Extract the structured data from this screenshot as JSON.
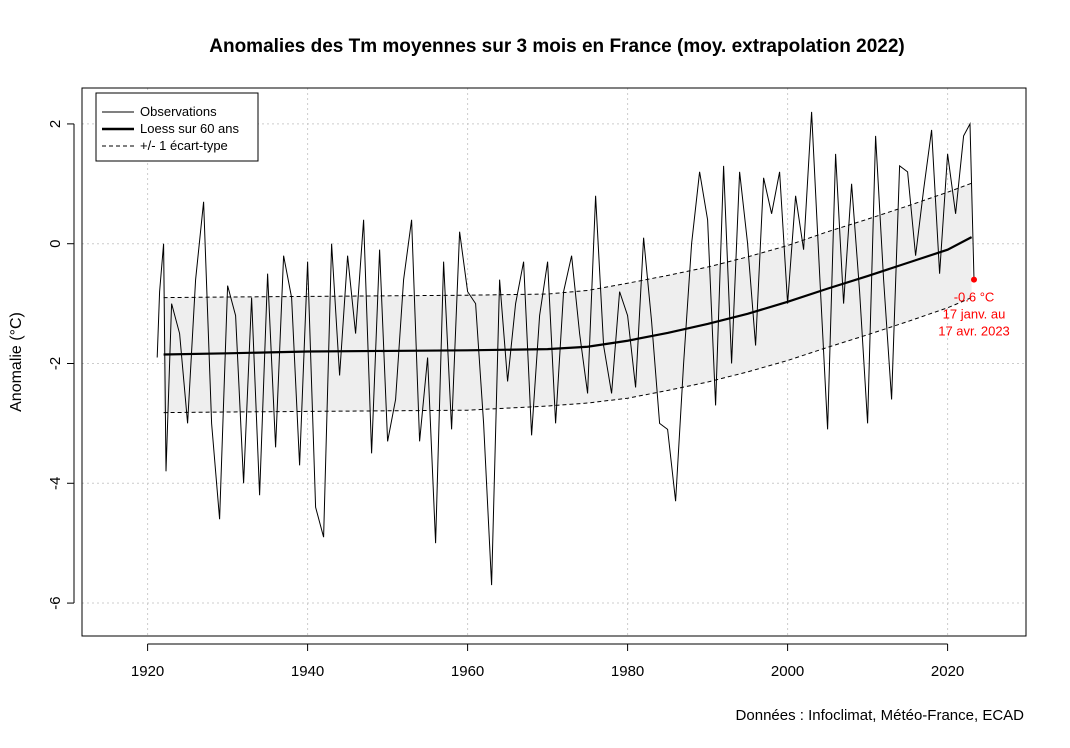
{
  "chart_data": {
    "type": "line",
    "title": "Anomalies des Tm moyennes sur 3 mois en France (moy. extrapolation 2022)",
    "ylabel": "Anomalie (°C)",
    "xlabel": "",
    "xlim": [
      1920,
      2030
    ],
    "ylim": [
      -6,
      2.6
    ],
    "x_ticks": [
      1920,
      1940,
      1960,
      1980,
      2000,
      2020
    ],
    "y_ticks": [
      -6,
      -4,
      -2,
      0,
      2
    ],
    "grid": true,
    "legend_position": "top-left",
    "legend": [
      "Observations",
      "Loess sur 60 ans",
      "+/- 1 écart-type"
    ],
    "series": [
      {
        "name": "Observations",
        "color": "#000000",
        "style": "thin-solid",
        "x": [
          1921.2,
          1921.5,
          1922.0,
          1922.3,
          1923.0,
          1924.0,
          1925.0,
          1926.0,
          1927.0,
          1928.0,
          1929.0,
          1930.0,
          1931.0,
          1932.0,
          1933.0,
          1934.0,
          1935.0,
          1936.0,
          1937.0,
          1938.0,
          1939.0,
          1940.0,
          1941.0,
          1942.0,
          1943.0,
          1944.0,
          1945.0,
          1946.0,
          1947.0,
          1948.0,
          1949.0,
          1950.0,
          1951.0,
          1952.0,
          1953.0,
          1954.0,
          1955.0,
          1956.0,
          1957.0,
          1958.0,
          1959.0,
          1960.0,
          1961.0,
          1962.0,
          1963.0,
          1964.0,
          1965.0,
          1966.0,
          1967.0,
          1968.0,
          1969.0,
          1970.0,
          1971.0,
          1972.0,
          1973.0,
          1974.0,
          1975.0,
          1976.0,
          1977.0,
          1978.0,
          1979.0,
          1980.0,
          1981.0,
          1982.0,
          1983.0,
          1984.0,
          1985.0,
          1986.0,
          1987.0,
          1988.0,
          1989.0,
          1990.0,
          1991.0,
          1992.0,
          1993.0,
          1994.0,
          1995.0,
          1996.0,
          1997.0,
          1998.0,
          1999.0,
          2000.0,
          2001.0,
          2002.0,
          2003.0,
          2004.0,
          2005.0,
          2006.0,
          2007.0,
          2008.0,
          2009.0,
          2010.0,
          2011.0,
          2012.0,
          2013.0,
          2014.0,
          2015.0,
          2016.0,
          2017.0,
          2018.0,
          2019.0,
          2020.0,
          2021.0,
          2022.0,
          2022.8,
          2023.3
        ],
        "y": [
          -1.9,
          -0.8,
          0.0,
          -3.8,
          -1.0,
          -1.5,
          -3.0,
          -0.6,
          0.7,
          -3.0,
          -4.6,
          -0.7,
          -1.2,
          -4.0,
          -0.9,
          -4.2,
          -0.5,
          -3.4,
          -0.2,
          -0.9,
          -3.7,
          -0.3,
          -4.4,
          -4.9,
          0.0,
          -2.2,
          -0.2,
          -1.5,
          0.4,
          -3.5,
          -0.1,
          -3.3,
          -2.6,
          -0.6,
          0.4,
          -3.3,
          -1.9,
          -5.0,
          -0.3,
          -3.1,
          0.2,
          -0.8,
          -1.0,
          -3.0,
          -5.7,
          -0.6,
          -2.3,
          -1.0,
          -0.3,
          -3.2,
          -1.2,
          -0.3,
          -3.0,
          -0.8,
          -0.2,
          -1.5,
          -2.5,
          0.8,
          -1.7,
          -2.5,
          -0.8,
          -1.2,
          -2.4,
          0.1,
          -1.3,
          -3.0,
          -3.1,
          -4.3,
          -2.0,
          0.0,
          1.2,
          0.4,
          -2.7,
          1.3,
          -2.0,
          1.2,
          0.0,
          -1.7,
          1.1,
          0.5,
          1.2,
          -1.0,
          0.8,
          -0.1,
          2.2,
          -0.5,
          -3.1,
          1.5,
          -1.0,
          1.0,
          -0.8,
          -3.0,
          1.8,
          -0.6,
          -2.6,
          1.3,
          1.2,
          -0.2,
          0.9,
          1.9,
          -0.5,
          1.5,
          0.5,
          1.8,
          2.0,
          -0.6
        ]
      },
      {
        "name": "Loess sur 60 ans",
        "color": "#000000",
        "style": "thick-solid",
        "x": [
          1922,
          1930,
          1940,
          1950,
          1960,
          1970,
          1975,
          1980,
          1985,
          1990,
          1995,
          2000,
          2005,
          2010,
          2015,
          2020,
          2023
        ],
        "y": [
          -1.85,
          -1.83,
          -1.8,
          -1.79,
          -1.78,
          -1.76,
          -1.72,
          -1.62,
          -1.49,
          -1.34,
          -1.17,
          -0.97,
          -0.75,
          -0.54,
          -0.32,
          -0.1,
          0.11
        ]
      },
      {
        "name": "+/- 1 écart-type",
        "color": "#000000",
        "style": "dashed",
        "x": [
          1922,
          1930,
          1940,
          1950,
          1960,
          1970,
          1975,
          1980,
          1985,
          1990,
          1995,
          2000,
          2005,
          2010,
          2015,
          2020,
          2023
        ],
        "upper": [
          -0.9,
          -0.89,
          -0.88,
          -0.87,
          -0.86,
          -0.84,
          -0.78,
          -0.66,
          -0.53,
          -0.39,
          -0.22,
          -0.03,
          0.2,
          0.41,
          0.63,
          0.86,
          1.01
        ],
        "lower": [
          -2.82,
          -2.81,
          -2.8,
          -2.79,
          -2.78,
          -2.71,
          -2.66,
          -2.58,
          -2.45,
          -2.31,
          -2.14,
          -1.95,
          -1.73,
          -1.52,
          -1.3,
          -1.07,
          -0.9
        ]
      }
    ],
    "annotation": {
      "x": 2023.3,
      "y": -0.6,
      "color": "#ff0000",
      "lines": [
        "-0.6 °C",
        "17 janv. au",
        "17 avr. 2023"
      ]
    },
    "source": "Données : Infoclimat, Météo-France, ECAD"
  }
}
